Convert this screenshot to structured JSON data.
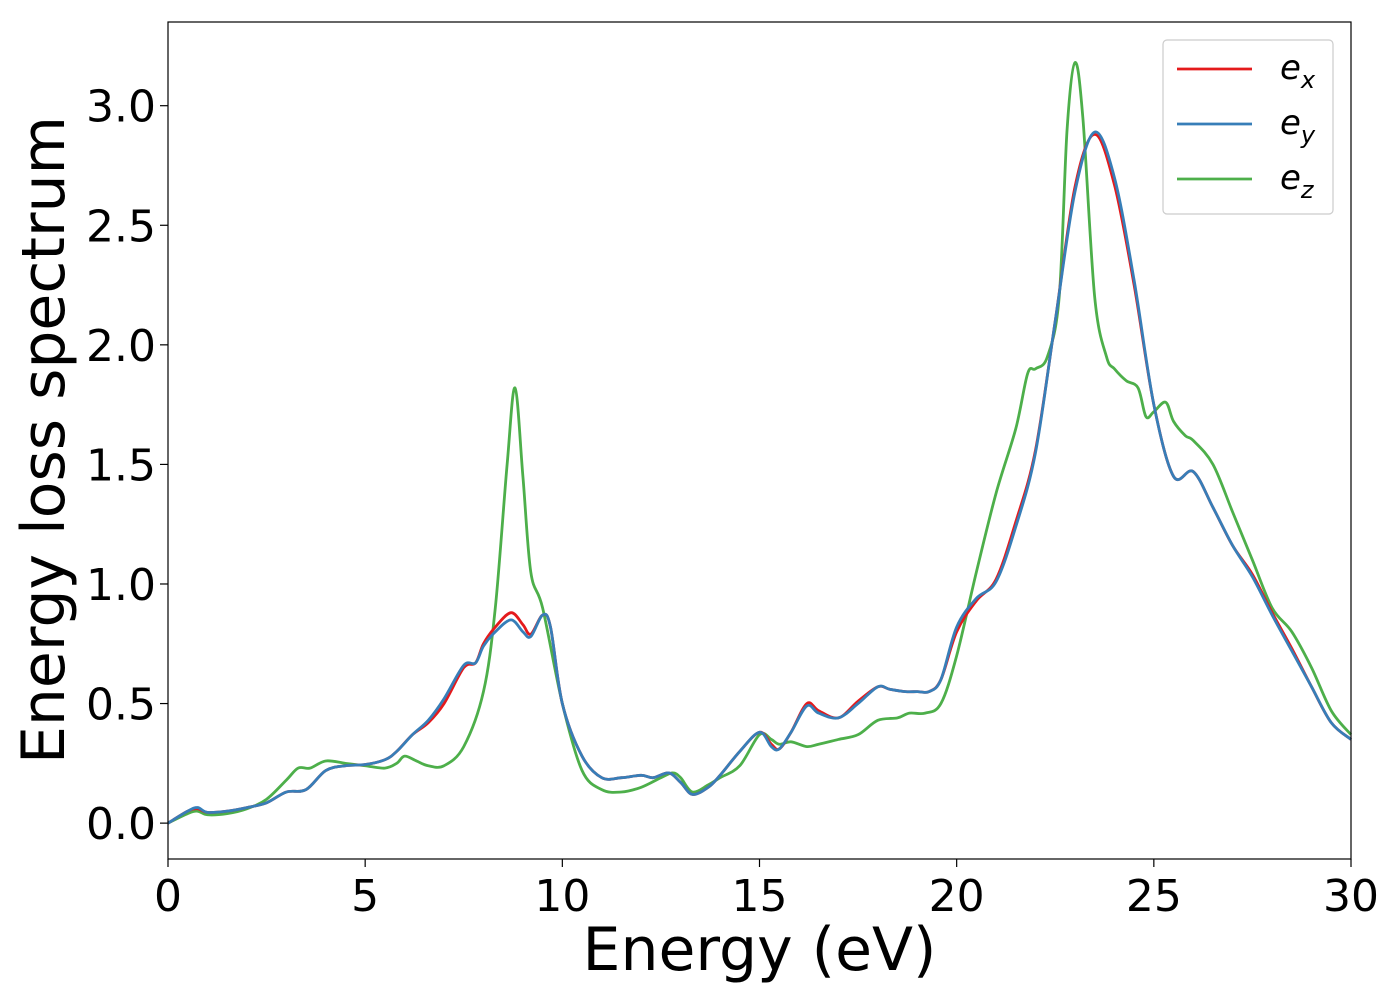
{
  "chart_data": {
    "type": "line",
    "xlabel": "Energy (eV)",
    "ylabel": "Energy loss spectrum",
    "xlim": [
      0,
      30
    ],
    "ylim": [
      -0.15,
      3.35
    ],
    "xticks": [
      0,
      5,
      10,
      15,
      20,
      25,
      30
    ],
    "xtick_labels": [
      "0",
      "5",
      "10",
      "15",
      "20",
      "25",
      "30"
    ],
    "yticks": [
      0.0,
      0.5,
      1.0,
      1.5,
      2.0,
      2.5,
      3.0
    ],
    "ytick_labels": [
      "0.0",
      "0.5",
      "1.0",
      "1.5",
      "2.0",
      "2.5",
      "3.0"
    ],
    "grid": false,
    "legend_position": "top-right",
    "series": [
      {
        "name": "e",
        "subscript": "x",
        "color": "#e41a1c",
        "x": [
          0,
          0.5,
          0.75,
          1.0,
          1.5,
          2.0,
          2.5,
          3.0,
          3.5,
          4.0,
          4.5,
          5.0,
          5.5,
          5.8,
          6.2,
          6.6,
          7.0,
          7.5,
          7.8,
          8.0,
          8.3,
          8.7,
          9.0,
          9.2,
          9.5,
          9.7,
          10.0,
          10.5,
          11.0,
          11.5,
          12.0,
          12.3,
          12.7,
          13.0,
          13.3,
          13.7,
          14.0,
          14.5,
          15.0,
          15.3,
          15.5,
          15.8,
          16.2,
          16.5,
          17.0,
          17.5,
          18.0,
          18.3,
          18.7,
          19.0,
          19.3,
          19.6,
          20.0,
          20.5,
          21.0,
          21.5,
          22.0,
          22.5,
          23.0,
          23.5,
          24.0,
          24.5,
          25.0,
          25.5,
          26.0,
          26.5,
          27.0,
          27.5,
          28.0,
          28.5,
          29.0,
          29.5,
          30.0
        ],
        "y": [
          0.0,
          0.05,
          0.06,
          0.045,
          0.05,
          0.065,
          0.085,
          0.13,
          0.14,
          0.22,
          0.24,
          0.245,
          0.265,
          0.3,
          0.37,
          0.42,
          0.5,
          0.65,
          0.67,
          0.75,
          0.82,
          0.88,
          0.83,
          0.79,
          0.87,
          0.82,
          0.5,
          0.28,
          0.19,
          0.19,
          0.2,
          0.19,
          0.21,
          0.17,
          0.12,
          0.15,
          0.2,
          0.3,
          0.38,
          0.33,
          0.31,
          0.38,
          0.5,
          0.47,
          0.44,
          0.51,
          0.57,
          0.56,
          0.55,
          0.55,
          0.55,
          0.6,
          0.8,
          0.93,
          1.02,
          1.26,
          1.56,
          2.1,
          2.66,
          2.88,
          2.67,
          2.25,
          1.75,
          1.45,
          1.47,
          1.32,
          1.16,
          1.04,
          0.88,
          0.73,
          0.57,
          0.42,
          0.35
        ]
      },
      {
        "name": "e",
        "subscript": "y",
        "color": "#377eb8",
        "x": [
          0,
          0.5,
          0.75,
          1.0,
          1.5,
          2.0,
          2.5,
          3.0,
          3.5,
          4.0,
          4.5,
          5.0,
          5.5,
          5.8,
          6.2,
          6.6,
          7.0,
          7.5,
          7.8,
          8.0,
          8.3,
          8.7,
          9.0,
          9.2,
          9.5,
          9.7,
          10.0,
          10.5,
          11.0,
          11.5,
          12.0,
          12.3,
          12.7,
          13.0,
          13.3,
          13.7,
          14.0,
          14.5,
          15.0,
          15.3,
          15.5,
          15.8,
          16.2,
          16.5,
          17.0,
          17.5,
          18.0,
          18.3,
          18.7,
          19.0,
          19.3,
          19.6,
          20.0,
          20.5,
          21.0,
          21.5,
          22.0,
          22.5,
          23.0,
          23.5,
          24.0,
          24.5,
          25.0,
          25.5,
          26.0,
          26.5,
          27.0,
          27.5,
          28.0,
          28.5,
          29.0,
          29.5,
          30.0
        ],
        "y": [
          0.0,
          0.05,
          0.065,
          0.045,
          0.05,
          0.065,
          0.085,
          0.13,
          0.14,
          0.22,
          0.24,
          0.245,
          0.265,
          0.3,
          0.37,
          0.43,
          0.52,
          0.66,
          0.67,
          0.74,
          0.8,
          0.85,
          0.8,
          0.78,
          0.87,
          0.82,
          0.5,
          0.28,
          0.19,
          0.19,
          0.2,
          0.19,
          0.21,
          0.17,
          0.12,
          0.15,
          0.2,
          0.3,
          0.38,
          0.32,
          0.31,
          0.38,
          0.49,
          0.46,
          0.44,
          0.5,
          0.57,
          0.56,
          0.55,
          0.55,
          0.55,
          0.6,
          0.82,
          0.94,
          1.01,
          1.24,
          1.55,
          2.1,
          2.64,
          2.89,
          2.7,
          2.27,
          1.75,
          1.45,
          1.47,
          1.32,
          1.16,
          1.03,
          0.87,
          0.72,
          0.57,
          0.42,
          0.35
        ]
      },
      {
        "name": "e",
        "subscript": "z",
        "color": "#4daf4a",
        "x": [
          0,
          0.5,
          0.75,
          1.0,
          1.5,
          2.0,
          2.5,
          3.0,
          3.3,
          3.6,
          4.0,
          4.5,
          5.0,
          5.5,
          5.8,
          6.0,
          6.3,
          6.6,
          7.0,
          7.5,
          8.0,
          8.3,
          8.6,
          8.8,
          9.0,
          9.2,
          9.5,
          10.0,
          10.5,
          11.0,
          11.5,
          12.0,
          12.5,
          12.8,
          13.0,
          13.3,
          13.7,
          14.0,
          14.5,
          15.0,
          15.3,
          15.5,
          15.8,
          16.2,
          16.5,
          17.0,
          17.5,
          18.0,
          18.5,
          18.8,
          19.2,
          19.6,
          20.0,
          20.5,
          21.0,
          21.5,
          21.8,
          22.0,
          22.3,
          22.6,
          22.8,
          23.0,
          23.2,
          23.5,
          23.8,
          24.0,
          24.3,
          24.6,
          24.8,
          25.0,
          25.3,
          25.5,
          25.8,
          26.0,
          26.5,
          27.0,
          27.5,
          28.0,
          28.5,
          29.0,
          29.5,
          30.0
        ],
        "y": [
          0.0,
          0.04,
          0.05,
          0.035,
          0.04,
          0.06,
          0.1,
          0.18,
          0.23,
          0.23,
          0.26,
          0.25,
          0.24,
          0.23,
          0.25,
          0.28,
          0.26,
          0.24,
          0.24,
          0.32,
          0.55,
          0.9,
          1.5,
          1.82,
          1.45,
          1.05,
          0.9,
          0.5,
          0.22,
          0.14,
          0.13,
          0.15,
          0.19,
          0.21,
          0.19,
          0.13,
          0.16,
          0.19,
          0.24,
          0.37,
          0.35,
          0.33,
          0.34,
          0.32,
          0.33,
          0.35,
          0.37,
          0.43,
          0.44,
          0.46,
          0.46,
          0.5,
          0.7,
          1.05,
          1.38,
          1.65,
          1.88,
          1.9,
          1.95,
          2.2,
          2.9,
          3.18,
          2.95,
          2.2,
          1.95,
          1.9,
          1.85,
          1.82,
          1.7,
          1.72,
          1.76,
          1.68,
          1.62,
          1.6,
          1.5,
          1.3,
          1.1,
          0.9,
          0.8,
          0.65,
          0.47,
          0.37
        ]
      }
    ]
  }
}
